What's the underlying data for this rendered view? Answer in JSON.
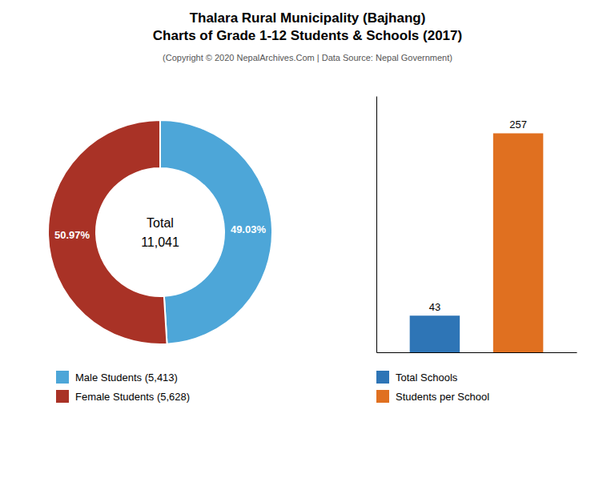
{
  "title": [
    "Thalara Rural Municipality (Bajhang)",
    "Charts of Grade 1-12 Students & Schools (2017)"
  ],
  "subtitle": "(Copyright © 2020 NepalArchives.Com | Data Source: Nepal Government)",
  "chart_data": [
    {
      "type": "pie",
      "categories": [
        "Male Students (5,413)",
        "Female Students (5,628)"
      ],
      "values": [
        49.03,
        50.97
      ],
      "value_labels": [
        "49.03%",
        "50.97%"
      ],
      "colors": [
        "#4da6d8",
        "#a93226"
      ],
      "annotations": [
        "Total",
        "11,041"
      ],
      "data_labels": true,
      "legend": "bottom"
    },
    {
      "type": "bar",
      "categories": [
        "Total Schools",
        "Students per School"
      ],
      "values": [
        43,
        257
      ],
      "colors": [
        "#2e75b6",
        "#e07020"
      ],
      "ylim": [
        0,
        300.69
      ],
      "data_labels": true,
      "tick_labels": false,
      "grid": false,
      "legend": "bottom"
    }
  ]
}
